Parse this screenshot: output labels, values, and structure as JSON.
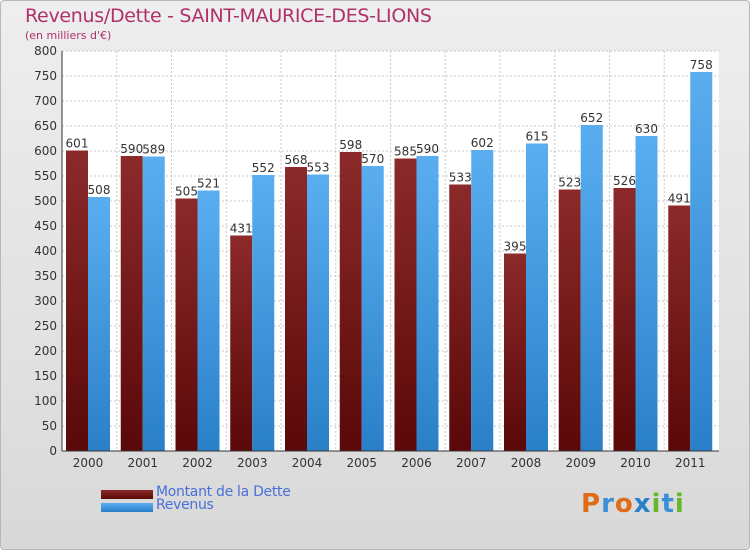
{
  "chart_data": {
    "type": "bar",
    "title": "Revenus/Dette - SAINT-MAURICE-DES-LIONS",
    "subtitle": "(en milliers d'€)",
    "categories": [
      "2000",
      "2001",
      "2002",
      "2003",
      "2004",
      "2005",
      "2006",
      "2007",
      "2008",
      "2009",
      "2010",
      "2011"
    ],
    "series": [
      {
        "name": "Montant de la Dette",
        "color": "#7a1a1a",
        "values": [
          601,
          590,
          505,
          431,
          568,
          598,
          585,
          533,
          395,
          523,
          526,
          491
        ]
      },
      {
        "name": "Revenus",
        "color": "#3d9be0",
        "values": [
          508,
          589,
          521,
          552,
          553,
          570,
          590,
          602,
          615,
          652,
          630,
          758
        ]
      }
    ],
    "ylim": [
      0,
      800
    ],
    "ytick_step": 50,
    "grid": true,
    "legend_position": "bottom-left",
    "data_labels": true
  },
  "logo": {
    "letters": [
      "P",
      "r",
      "o",
      "x",
      "i",
      "t",
      "i"
    ],
    "colors": [
      "#e06c1a",
      "#3b8fd6",
      "#e06c1a",
      "#2a7fc9",
      "#66b82a",
      "#3b8fd6",
      "#66b82a"
    ]
  }
}
